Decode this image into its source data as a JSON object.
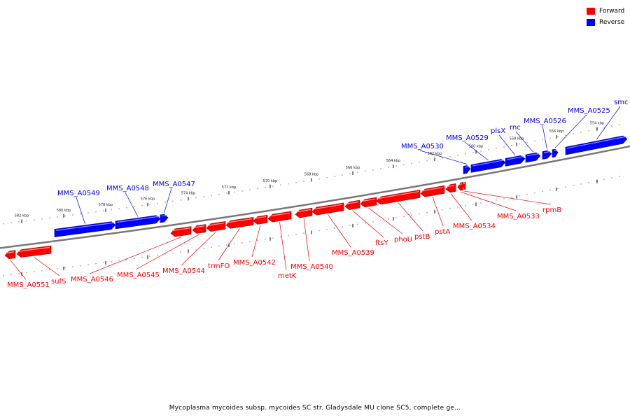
{
  "legend": {
    "items": [
      {
        "label": "Forward",
        "color": "#ff0000"
      },
      {
        "label": "Reverse",
        "color": "#0000ff"
      }
    ]
  },
  "caption": "Mycoplasma mycoides subsp. mycoides SC str. Gladysdale MU clone SC5, complete ge...",
  "scale_labels": [
    "582 kbp",
    "580 kbp",
    "578 kbp",
    "576 kbp",
    "574 kbp",
    "572 kbp",
    "570 kbp",
    "568 kbp",
    "566 kbp",
    "564 kbp",
    "562 kbp",
    "560 kbp",
    "558 kbp",
    "556 kbp",
    "554 kbp"
  ],
  "genes": [
    {
      "label": "MMS_A0551",
      "strand": "forward"
    },
    {
      "label": "sufS",
      "strand": "forward"
    },
    {
      "label": "MMS_A0549",
      "strand": "reverse"
    },
    {
      "label": "MMS_A0548",
      "strand": "reverse"
    },
    {
      "label": "MMS_A0547",
      "strand": "reverse"
    },
    {
      "label": "MMS_A0546",
      "strand": "forward"
    },
    {
      "label": "MMS_A0545",
      "strand": "forward"
    },
    {
      "label": "MMS_A0544",
      "strand": "forward"
    },
    {
      "label": "trmFO",
      "strand": "forward"
    },
    {
      "label": "MMS_A0542",
      "strand": "forward"
    },
    {
      "label": "metK",
      "strand": "forward"
    },
    {
      "label": "MMS_A0540",
      "strand": "forward"
    },
    {
      "label": "MMS_A0539",
      "strand": "forward"
    },
    {
      "label": "ftsY",
      "strand": "forward"
    },
    {
      "label": "phoU",
      "strand": "forward"
    },
    {
      "label": "pstB",
      "strand": "forward"
    },
    {
      "label": "pstA",
      "strand": "forward"
    },
    {
      "label": "MMS_A0534",
      "strand": "forward"
    },
    {
      "label": "MMS_A0533",
      "strand": "forward"
    },
    {
      "label": "rpmB",
      "strand": "forward"
    },
    {
      "label": "MMS_A0530",
      "strand": "reverse"
    },
    {
      "label": "MMS_A0529",
      "strand": "reverse"
    },
    {
      "label": "plsX",
      "strand": "reverse"
    },
    {
      "label": "rnc",
      "strand": "reverse"
    },
    {
      "label": "MMS_A0526",
      "strand": "reverse"
    },
    {
      "label": "MMS_A0525",
      "strand": "reverse"
    },
    {
      "label": "smc",
      "strand": "reverse"
    }
  ]
}
